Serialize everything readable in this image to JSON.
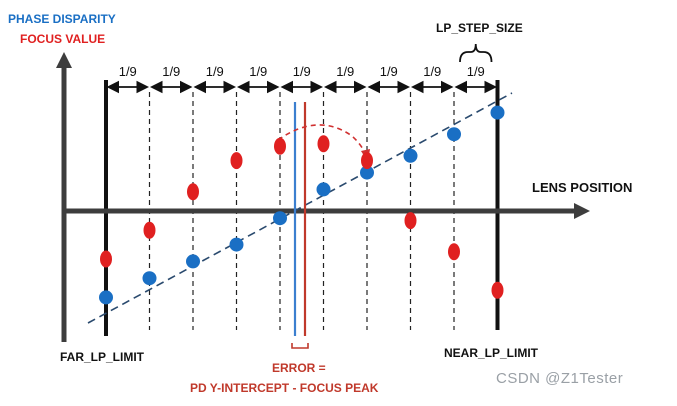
{
  "labels": {
    "phase_disparity": "PHASE DISPARITY",
    "focus_value": "FOCUS VALUE",
    "lens_position": "LENS POSITION",
    "far_lp_limit": "FAR_LP_LIMIT",
    "near_lp_limit": "NEAR_LP_LIMIT",
    "lp_step_size": "LP_STEP_SIZE",
    "error_line1": "ERROR =",
    "error_line2": "PD Y-INTERCEPT - FOCUS PEAK",
    "watermark": "CSDN @Z1Tester",
    "fraction": "1/9"
  },
  "colors": {
    "phase_disparity": "#1a6fc4",
    "focus_value": "#e02020",
    "axis": "#3d3d3d",
    "error": "#c0392b",
    "pd_intercept_line": "#3b7fcf",
    "focus_peak_line": "#c0392b"
  },
  "chart_data": {
    "steps": 9,
    "phase_disparity_points": [
      -3.6,
      -2.8,
      -2.1,
      -1.4,
      -0.3,
      0.9,
      1.6,
      2.3,
      3.2,
      4.1
    ],
    "focus_value_points": [
      -2.0,
      -0.8,
      0.8,
      2.1,
      2.7,
      2.8,
      2.1,
      -0.4,
      -1.7,
      -3.3
    ]
  }
}
